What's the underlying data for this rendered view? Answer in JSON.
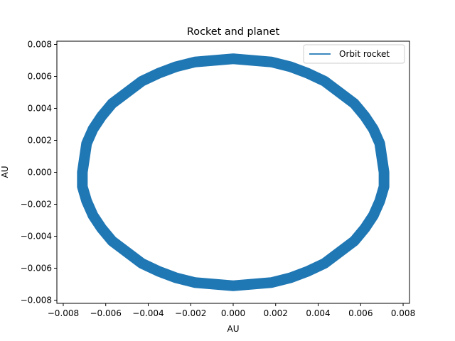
{
  "chart_data": {
    "type": "line",
    "title": "Rocket and planet",
    "xlabel": "AU",
    "ylabel": "AU",
    "xlim": [
      -0.0083,
      0.0083
    ],
    "ylim": [
      -0.0082,
      0.0082
    ],
    "xticks": [
      -0.008,
      -0.006,
      -0.004,
      -0.002,
      0.0,
      0.002,
      0.004,
      0.006,
      0.008
    ],
    "xtick_labels": [
      "−0.008",
      "−0.006",
      "−0.004",
      "−0.002",
      "0.000",
      "0.002",
      "0.004",
      "0.006",
      "0.008"
    ],
    "yticks": [
      -0.008,
      -0.006,
      -0.004,
      -0.002,
      0.0,
      0.002,
      0.004,
      0.006,
      0.008
    ],
    "ytick_labels": [
      "−0.008",
      "−0.006",
      "−0.004",
      "−0.002",
      "0.000",
      "0.002",
      "0.004",
      "0.006",
      "0.008"
    ],
    "legend_position": "top-right",
    "grid": false,
    "series": [
      {
        "name": "Orbit rocket",
        "color": "#1f77b4",
        "shape": "closed elliptical orbit traced repeatedly (thick band)",
        "x": [
          0.0071,
          0.0069,
          0.0066,
          0.0062,
          0.0057,
          0.005,
          0.0043,
          0.0035,
          0.0027,
          0.0018,
          0.0009,
          0.0,
          -0.0009,
          -0.0018,
          -0.0027,
          -0.0035,
          -0.0043,
          -0.005,
          -0.0057,
          -0.0062,
          -0.0066,
          -0.0069,
          -0.0071,
          -0.0071,
          -0.0069,
          -0.0066,
          -0.0062,
          -0.0057,
          -0.005,
          -0.0043,
          -0.0035,
          -0.0027,
          -0.0018,
          -0.0009,
          0.0,
          0.0009,
          0.0018,
          0.0027,
          0.0035,
          0.0043,
          0.005,
          0.0057,
          0.0062,
          0.0066,
          0.0069,
          0.0071,
          0.0071
        ],
        "y": [
          0.0,
          0.0018,
          0.0027,
          0.0035,
          0.0043,
          0.005,
          0.0057,
          0.0062,
          0.0066,
          0.0069,
          0.007,
          0.0071,
          0.007,
          0.0069,
          0.0066,
          0.0062,
          0.0057,
          0.005,
          0.0043,
          0.0035,
          0.0027,
          0.0018,
          0.0,
          -0.0009,
          -0.0018,
          -0.0027,
          -0.0035,
          -0.0043,
          -0.005,
          -0.0057,
          -0.0062,
          -0.0066,
          -0.0069,
          -0.007,
          -0.0071,
          -0.007,
          -0.0069,
          -0.0066,
          -0.0062,
          -0.0057,
          -0.005,
          -0.0043,
          -0.0035,
          -0.0027,
          -0.0018,
          -0.0009,
          0.0
        ]
      }
    ]
  }
}
